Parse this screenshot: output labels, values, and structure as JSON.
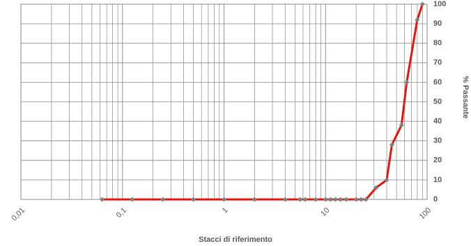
{
  "chart_data": {
    "type": "line",
    "x_label": "Stacci di riferimento",
    "y_label": "% Passante",
    "x": [
      0.063,
      0.125,
      0.25,
      0.5,
      1,
      2,
      4,
      5.6,
      6.3,
      8,
      10,
      11.2,
      12.5,
      14,
      16,
      20,
      22.4,
      25,
      31.5,
      40,
      45,
      56,
      63,
      80,
      90
    ],
    "series": [
      {
        "name": "% Passante",
        "color": "#e8140c",
        "marker_color": "#7f7f7f",
        "values": [
          0,
          0,
          0,
          0,
          0,
          0,
          0,
          0,
          0,
          0,
          0,
          0,
          0,
          0,
          0,
          0,
          0,
          0,
          6,
          10,
          28,
          38,
          60,
          92,
          100
        ]
      }
    ],
    "xscale": "log",
    "xlim": [
      0.01,
      100
    ],
    "xticks": [
      {
        "value": 0.01,
        "label": "0,01"
      },
      {
        "value": 0.1,
        "label": "0,1"
      },
      1,
      10,
      100
    ],
    "ylim": [
      0,
      100
    ],
    "yticks": [
      0,
      10,
      20,
      30,
      40,
      50,
      60,
      70,
      80,
      90,
      100
    ],
    "grid": true
  }
}
